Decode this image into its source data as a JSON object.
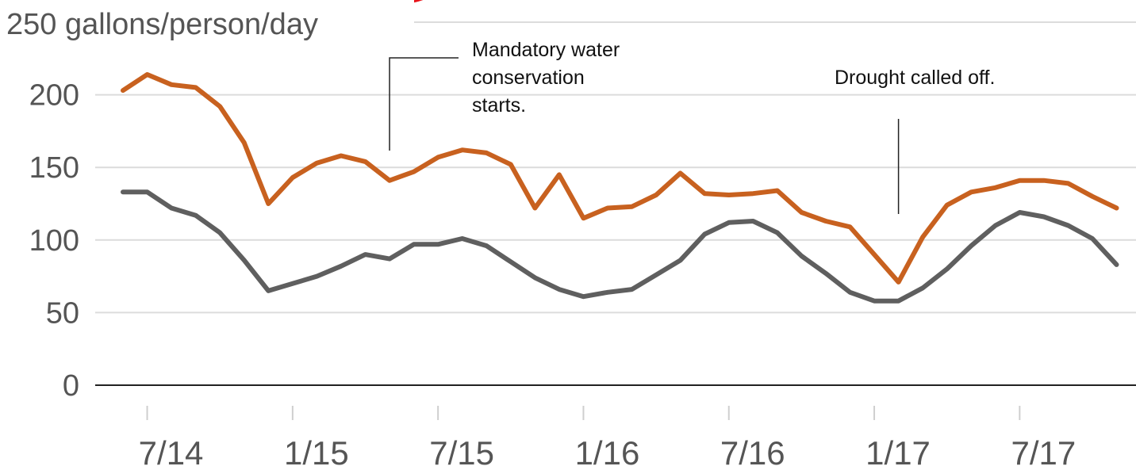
{
  "chart_data": {
    "type": "line",
    "ylabel": "250 gallons/person/day",
    "ylim": [
      0,
      250
    ],
    "y_ticks": [
      "0",
      "50",
      "100",
      "150",
      "200"
    ],
    "x_tick_labels": [
      "7/14",
      "1/15",
      "7/15",
      "1/16",
      "7/16",
      "1/17",
      "7/17"
    ],
    "x_tick_months": [
      "2014-07",
      "2015-01",
      "2015-07",
      "2016-01",
      "2016-07",
      "2017-01",
      "2017-07"
    ],
    "x_months": [
      "2014-06",
      "2014-07",
      "2014-08",
      "2014-09",
      "2014-10",
      "2014-11",
      "2014-12",
      "2015-01",
      "2015-02",
      "2015-03",
      "2015-04",
      "2015-05",
      "2015-06",
      "2015-07",
      "2015-08",
      "2015-09",
      "2015-10",
      "2015-11",
      "2015-12",
      "2016-01",
      "2016-02",
      "2016-03",
      "2016-04",
      "2016-05",
      "2016-06",
      "2016-07",
      "2016-08",
      "2016-09",
      "2016-10",
      "2016-11",
      "2016-12",
      "2017-01",
      "2017-02",
      "2017-03",
      "2017-04",
      "2017-05",
      "2017-06",
      "2017-07",
      "2017-08",
      "2017-09",
      "2017-10",
      "2017-11"
    ],
    "grid": true,
    "series": [
      {
        "color": "#c8611f",
        "values": [
          203,
          214,
          207,
          205,
          192,
          167,
          125,
          143,
          153,
          158,
          154,
          141,
          147,
          157,
          162,
          160,
          152,
          122,
          145,
          115,
          122,
          123,
          131,
          146,
          132,
          131,
          132,
          134,
          119,
          113,
          109,
          90,
          71,
          102,
          124,
          133,
          136,
          141,
          141,
          139,
          130,
          122
        ]
      },
      {
        "color": "#5f5f5f",
        "values": [
          133,
          133,
          122,
          117,
          105,
          86,
          65,
          70,
          75,
          82,
          90,
          87,
          97,
          97,
          101,
          96,
          85,
          74,
          66,
          61,
          64,
          66,
          76,
          86,
          104,
          112,
          113,
          105,
          89,
          77,
          64,
          58,
          58,
          67,
          80,
          96,
          110,
          119,
          116,
          110,
          101,
          83
        ]
      }
    ],
    "annotations": [
      {
        "lines": [
          "Mandatory water",
          "conservation",
          "starts."
        ],
        "month": "2015-05"
      },
      {
        "lines": [
          "Drought called off."
        ],
        "month": "2017-02"
      }
    ]
  }
}
